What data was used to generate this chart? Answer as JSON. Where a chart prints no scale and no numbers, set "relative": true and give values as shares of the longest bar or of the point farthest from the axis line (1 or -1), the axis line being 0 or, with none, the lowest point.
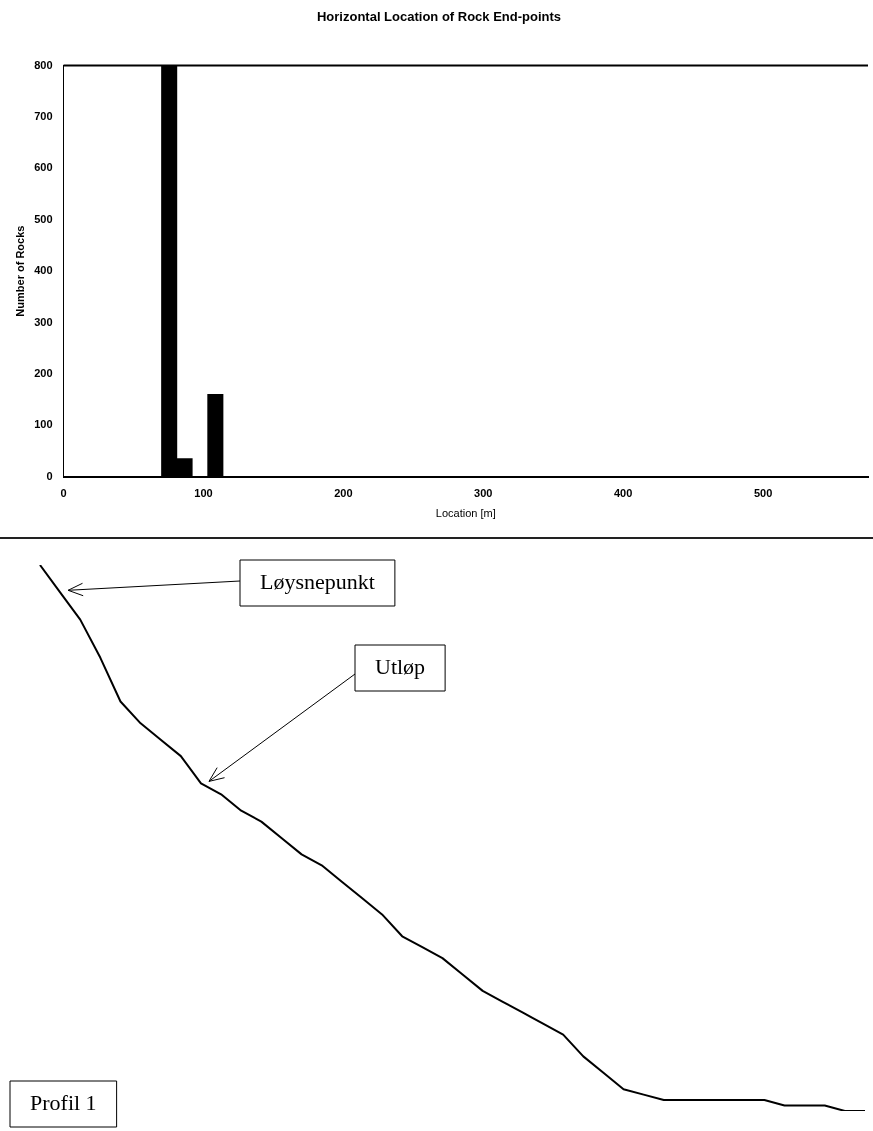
{
  "chart_data": [
    {
      "type": "histogram",
      "title": "Horizontal Location of Rock End-points",
      "xlabel": "Location [m]",
      "ylabel": "Number of Rocks",
      "bins": [
        70,
        81,
        92,
        103,
        114
      ],
      "values": [
        800,
        35,
        0,
        160
      ],
      "color": "#000000",
      "xlim": [
        0,
        575
      ],
      "xticks": [
        0,
        100,
        200,
        300,
        400,
        500
      ],
      "ylim": [
        0,
        800
      ],
      "yticks": [
        0,
        100,
        200,
        300,
        400,
        500,
        600,
        700,
        800
      ],
      "grid": false,
      "legend": false
    },
    {
      "type": "line",
      "relative": true,
      "categories": [
        null,
        null,
        null,
        null,
        null,
        null,
        null,
        null,
        null,
        null,
        null,
        null,
        null,
        null,
        null,
        null,
        null,
        null,
        null,
        null,
        null,
        null,
        null,
        null,
        null,
        null,
        null,
        null,
        null,
        null,
        null,
        null,
        null,
        null,
        null,
        null,
        null,
        null,
        null,
        null,
        null,
        null
      ],
      "series": [
        {
          "color": "#000000",
          "values": [
            1.0,
            0.95,
            0.9,
            0.83,
            0.75,
            0.71,
            0.68,
            0.65,
            0.6,
            0.58,
            0.55,
            0.53,
            0.5,
            0.47,
            0.45,
            0.42,
            0.39,
            0.36,
            0.32,
            0.3,
            0.28,
            0.25,
            0.22,
            0.2,
            0.18,
            0.16,
            0.14,
            0.1,
            0.07,
            0.04,
            0.03,
            0.02,
            0.02,
            0.02,
            0.02,
            0.02,
            0.02,
            0.01,
            0.01,
            0.01,
            0.0,
            0.0
          ]
        }
      ],
      "annotations": [
        "Løysnepunkt",
        "Utløp",
        "Profil 1"
      ],
      "marker": "none",
      "legend": false
    }
  ]
}
